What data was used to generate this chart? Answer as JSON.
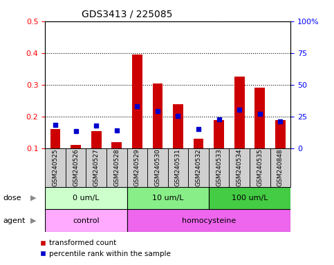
{
  "title": "GDS3413 / 225085",
  "samples": [
    "GSM240525",
    "GSM240526",
    "GSM240527",
    "GSM240528",
    "GSM240529",
    "GSM240530",
    "GSM240531",
    "GSM240532",
    "GSM240533",
    "GSM240534",
    "GSM240535",
    "GSM240848"
  ],
  "red_values": [
    0.16,
    0.11,
    0.155,
    0.12,
    0.395,
    0.305,
    0.24,
    0.13,
    0.19,
    0.325,
    0.29,
    0.19
  ],
  "blue_values": [
    0.173,
    0.155,
    0.172,
    0.157,
    0.232,
    0.218,
    0.201,
    0.16,
    0.192,
    0.222,
    0.208,
    0.185
  ],
  "ylim_left": [
    0.1,
    0.5
  ],
  "ylim_right": [
    0,
    100
  ],
  "yticks_left": [
    0.1,
    0.2,
    0.3,
    0.4,
    0.5
  ],
  "yticks_right": [
    0,
    25,
    50,
    75,
    100
  ],
  "ytick_labels_right": [
    "0",
    "25",
    "50",
    "75",
    "100%"
  ],
  "dose_groups": [
    {
      "label": "0 um/L",
      "start": 0,
      "end": 4,
      "color": "#ccffcc"
    },
    {
      "label": "10 um/L",
      "start": 4,
      "end": 8,
      "color": "#88ee88"
    },
    {
      "label": "100 um/L",
      "start": 8,
      "end": 12,
      "color": "#44cc44"
    }
  ],
  "agent_groups": [
    {
      "label": "control",
      "start": 0,
      "end": 4,
      "color": "#ffaaff"
    },
    {
      "label": "homocysteine",
      "start": 4,
      "end": 12,
      "color": "#ee66ee"
    }
  ],
  "legend_red_label": "transformed count",
  "legend_blue_label": "percentile rank within the sample",
  "dose_label": "dose",
  "agent_label": "agent",
  "bar_color": "#cc0000",
  "dot_color": "#0000cc",
  "bar_bottom": 0.1,
  "xtick_bg_color": "#d0d0d0",
  "arrow_color": "#888888"
}
